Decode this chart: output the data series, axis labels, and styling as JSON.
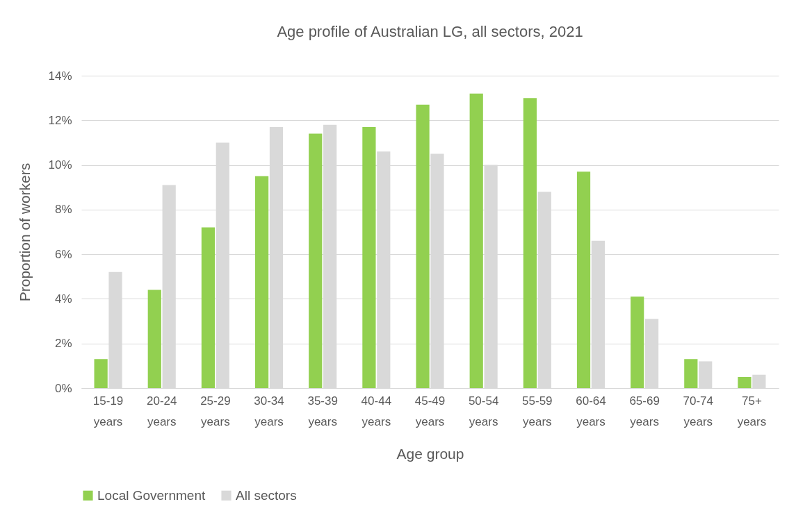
{
  "chart_data": {
    "type": "bar",
    "title": "Age profile of Australian LG, all sectors, 2021",
    "xlabel": "Age group",
    "ylabel": "Proportion of workers",
    "categories": [
      "15-19 years",
      "20-24 years",
      "25-29 years",
      "30-34 years",
      "35-39 years",
      "40-44 years",
      "45-49 years",
      "50-54 years",
      "55-59 years",
      "60-64 years",
      "65-69 years",
      "70-74 years",
      "75+ years"
    ],
    "series": [
      {
        "name": "Local Government",
        "color": "#92d050",
        "values": [
          1.3,
          4.4,
          7.2,
          9.5,
          11.4,
          11.7,
          12.7,
          13.2,
          13.0,
          9.7,
          4.1,
          1.3,
          0.5
        ]
      },
      {
        "name": "All sectors",
        "color": "#d9d9d9",
        "values": [
          5.2,
          9.1,
          11.0,
          11.7,
          11.8,
          10.6,
          10.5,
          10.0,
          8.8,
          6.6,
          3.1,
          1.2,
          0.6
        ]
      }
    ],
    "ylim": [
      0,
      14
    ],
    "yticks": [
      {
        "value": 0,
        "label": "0%"
      },
      {
        "value": 2,
        "label": "2%"
      },
      {
        "value": 4,
        "label": "4%"
      },
      {
        "value": 6,
        "label": "6%"
      },
      {
        "value": 8,
        "label": "8%"
      },
      {
        "value": 10,
        "label": "10%"
      },
      {
        "value": 12,
        "label": "12%"
      },
      {
        "value": 14,
        "label": "14%"
      }
    ],
    "grid": "y",
    "legend": "bottom"
  }
}
